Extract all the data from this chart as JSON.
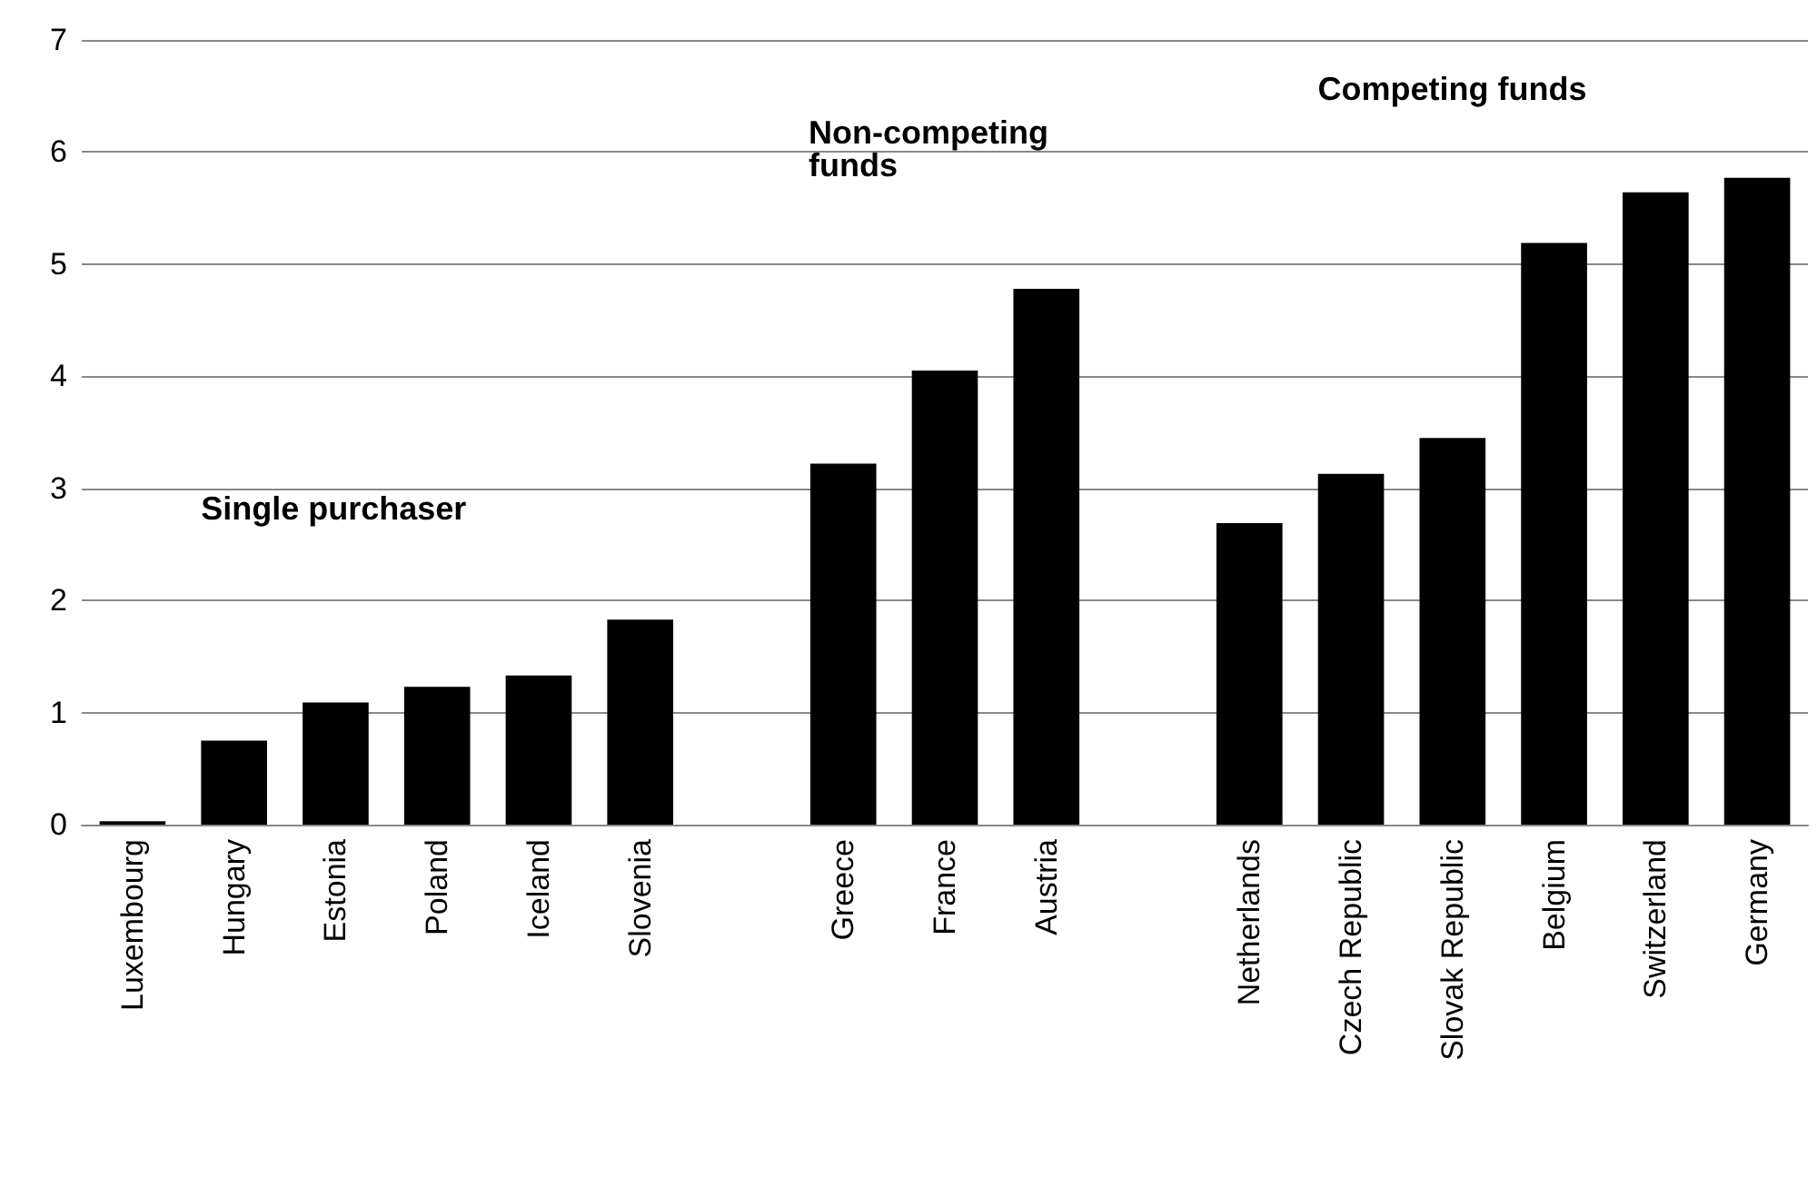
{
  "chart_data": {
    "type": "bar",
    "categories": [
      "Luxembourg",
      "Hungary",
      "Estonia",
      "Poland",
      "Iceland",
      "Slovenia",
      null,
      "Greece",
      "France",
      "Austria",
      null,
      "Netherlands",
      "Czech Republic",
      "Slovak Republic",
      "Belgium",
      "Switzerland",
      "Germany"
    ],
    "values": [
      0.03,
      0.75,
      1.09,
      1.23,
      1.33,
      1.83,
      null,
      3.22,
      4.05,
      4.78,
      null,
      2.69,
      3.13,
      3.45,
      5.19,
      5.64,
      5.77
    ],
    "color": "#000000",
    "ylim": [
      0,
      7
    ],
    "yticks": [
      0,
      1,
      2,
      3,
      4,
      5,
      6,
      7
    ],
    "grid": "y",
    "annotations": [
      "Single purchaser",
      "Non-competing funds",
      "Competing funds"
    ]
  }
}
